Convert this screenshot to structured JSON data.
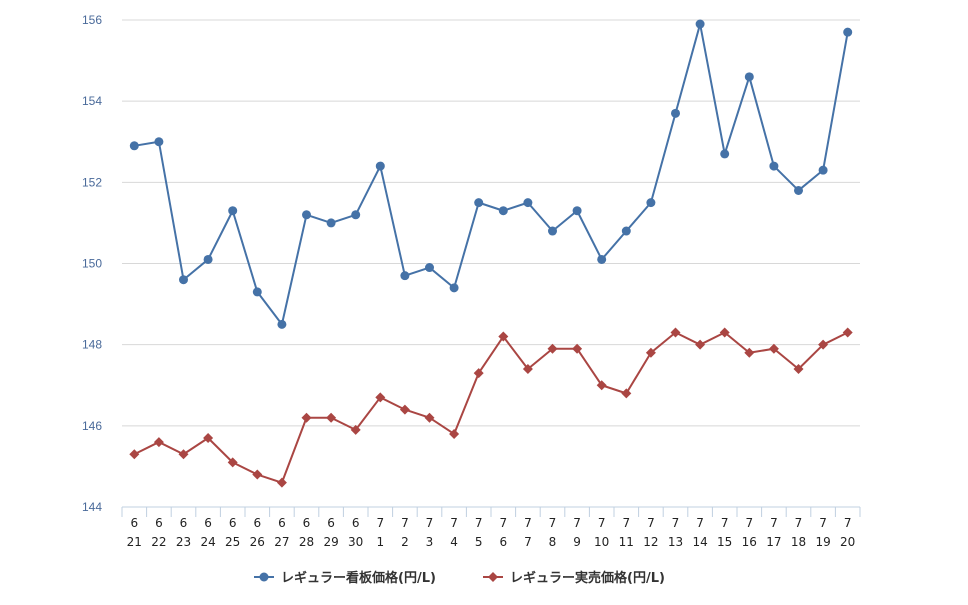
{
  "chart_data": {
    "type": "line",
    "categories": [
      [
        "6",
        "21"
      ],
      [
        "6",
        "22"
      ],
      [
        "6",
        "23"
      ],
      [
        "6",
        "24"
      ],
      [
        "6",
        "25"
      ],
      [
        "6",
        "26"
      ],
      [
        "6",
        "27"
      ],
      [
        "6",
        "28"
      ],
      [
        "6",
        "29"
      ],
      [
        "6",
        "30"
      ],
      [
        "7",
        "1"
      ],
      [
        "7",
        "2"
      ],
      [
        "7",
        "3"
      ],
      [
        "7",
        "4"
      ],
      [
        "7",
        "5"
      ],
      [
        "7",
        "6"
      ],
      [
        "7",
        "7"
      ],
      [
        "7",
        "8"
      ],
      [
        "7",
        "9"
      ],
      [
        "7",
        "10"
      ],
      [
        "7",
        "11"
      ],
      [
        "7",
        "12"
      ],
      [
        "7",
        "13"
      ],
      [
        "7",
        "14"
      ],
      [
        "7",
        "15"
      ],
      [
        "7",
        "16"
      ],
      [
        "7",
        "17"
      ],
      [
        "7",
        "18"
      ],
      [
        "7",
        "19"
      ],
      [
        "7",
        "20"
      ]
    ],
    "series": [
      {
        "name": "レギュラー看板価格(円/L)",
        "color": "#4572A7",
        "marker": "circle",
        "values": [
          152.9,
          153.0,
          149.6,
          150.1,
          151.3,
          149.3,
          148.5,
          151.2,
          151.0,
          151.2,
          152.4,
          149.7,
          149.9,
          149.4,
          151.5,
          151.3,
          151.5,
          150.8,
          151.3,
          150.1,
          150.8,
          151.5,
          153.7,
          155.9,
          152.7,
          154.6,
          152.4,
          151.8,
          152.3,
          155.7
        ]
      },
      {
        "name": "レギュラー実売価格(円/L)",
        "color": "#AA4643",
        "marker": "diamond",
        "values": [
          145.3,
          145.6,
          145.3,
          145.7,
          145.1,
          144.8,
          144.6,
          146.2,
          146.2,
          145.9,
          146.7,
          146.4,
          146.2,
          145.8,
          147.3,
          148.2,
          147.4,
          147.9,
          147.9,
          147.0,
          146.8,
          147.8,
          148.3,
          148.0,
          148.3,
          147.8,
          147.9,
          147.4,
          148.0,
          148.3
        ]
      }
    ],
    "ylim": [
      144,
      156
    ],
    "yticks": [
      "144",
      "146",
      "148",
      "150",
      "152",
      "154",
      "156"
    ],
    "grid": true,
    "legend_position": "bottom-center",
    "title": "",
    "xlabel": "",
    "ylabel": ""
  }
}
